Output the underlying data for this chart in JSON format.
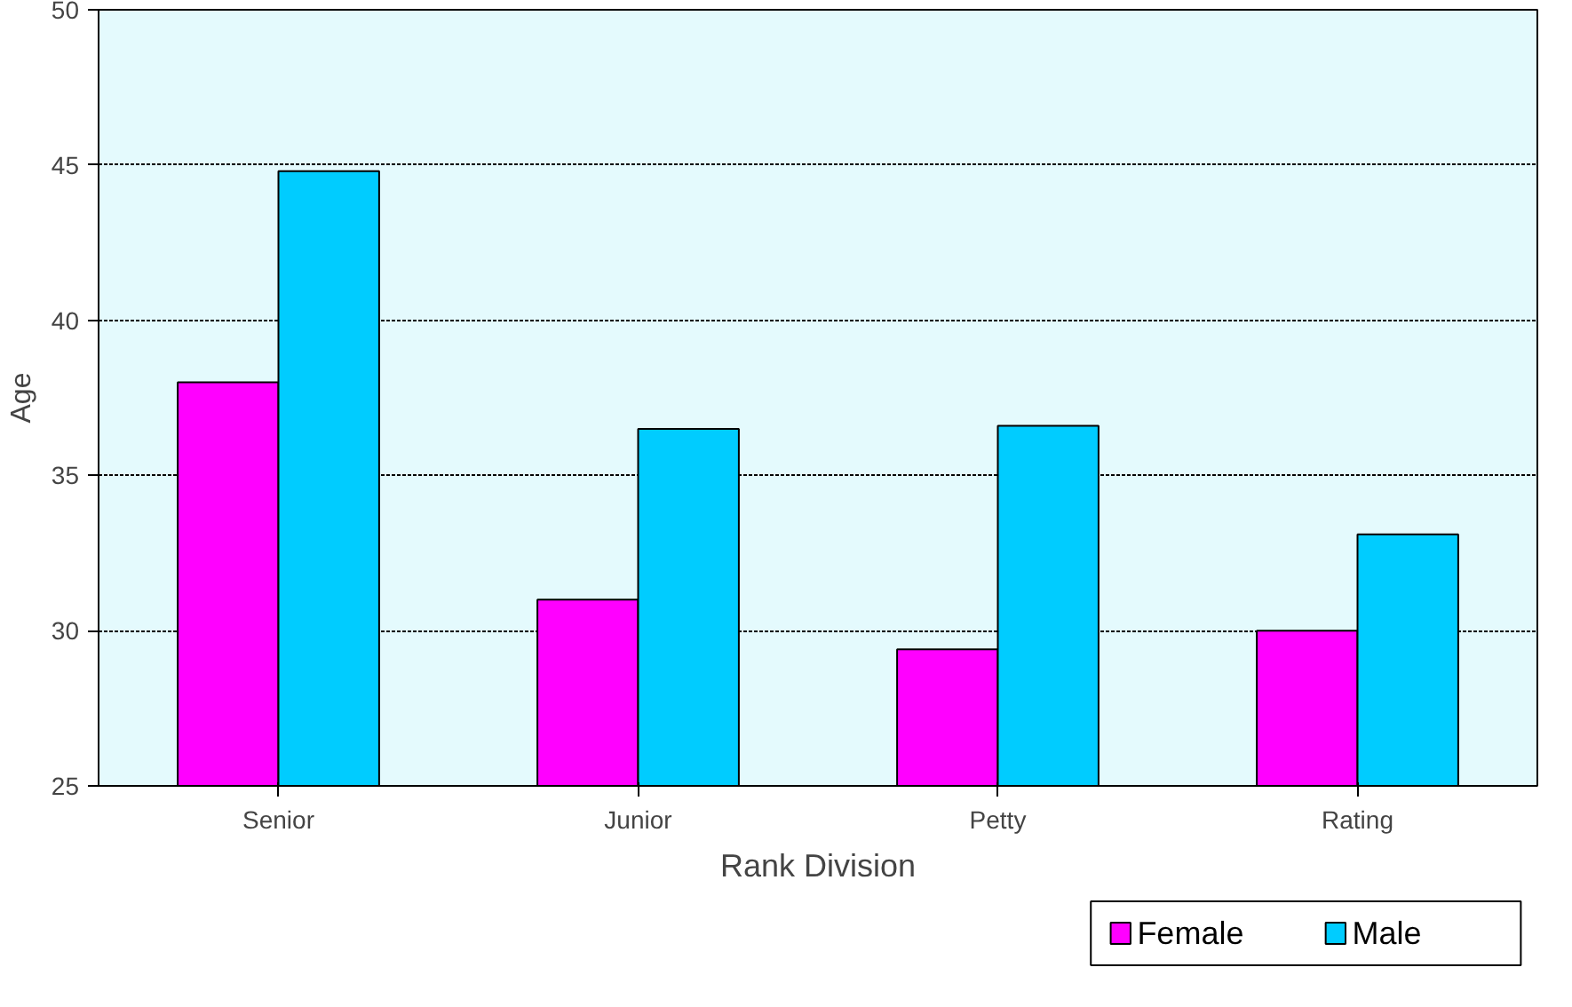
{
  "chart_data": {
    "type": "bar",
    "xlabel": "Rank Division",
    "ylabel": "Age",
    "categories": [
      "Senior",
      "Junior",
      "Petty",
      "Rating"
    ],
    "series": [
      {
        "name": "Female",
        "color": "#ff00ff",
        "values": [
          38,
          31,
          29.4,
          30
        ]
      },
      {
        "name": "Male",
        "color": "#00ccff",
        "values": [
          44.8,
          36.5,
          36.6,
          33.1
        ]
      }
    ],
    "ylim": [
      25,
      50
    ],
    "yticks": [
      25,
      30,
      35,
      40,
      45,
      50
    ],
    "grid": "y",
    "legend": "bottom right"
  }
}
